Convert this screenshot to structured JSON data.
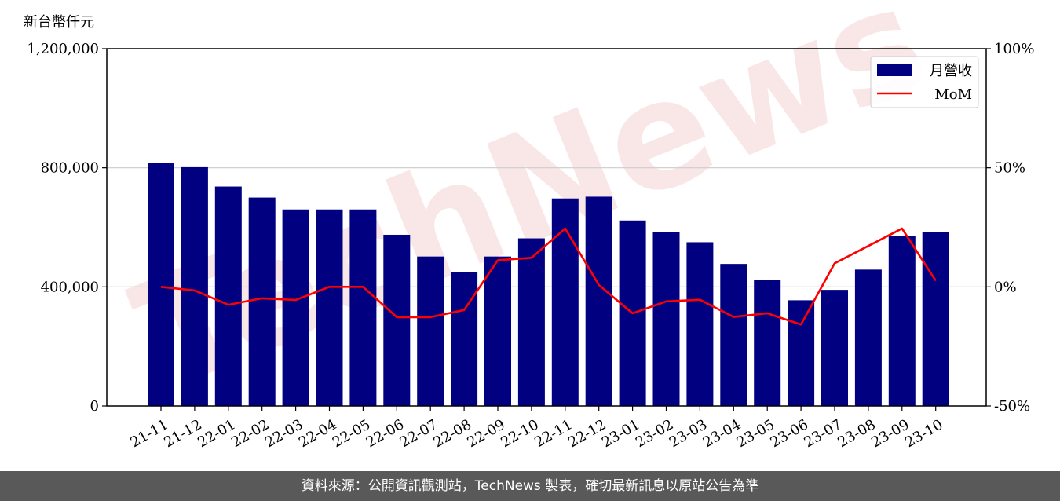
{
  "chart_data": {
    "type": "bar",
    "unit_label": "新台幣仟元",
    "categories": [
      "21-11",
      "21-12",
      "22-01",
      "22-02",
      "22-03",
      "22-04",
      "22-05",
      "22-06",
      "22-07",
      "22-08",
      "22-09",
      "22-10",
      "22-11",
      "22-12",
      "23-01",
      "23-02",
      "23-03",
      "23-04",
      "23-05",
      "23-06",
      "23-07",
      "23-08",
      "23-09",
      "23-10"
    ],
    "series": [
      {
        "name": "月營收",
        "type": "bar",
        "axis": "left",
        "color": "#000080",
        "values": [
          817000,
          802000,
          737000,
          700000,
          660000,
          660000,
          660000,
          575000,
          502000,
          450000,
          502000,
          563000,
          697000,
          703000,
          623000,
          583000,
          550000,
          477000,
          423000,
          355000,
          390000,
          458000,
          570000,
          583000
        ]
      },
      {
        "name": "MoM",
        "type": "line",
        "axis": "right",
        "color": "#ff0000",
        "values": [
          0.0,
          -1.5,
          -7.5,
          -4.8,
          -5.5,
          0.0,
          0.0,
          -12.7,
          -12.7,
          -9.7,
          11.2,
          12.2,
          24.5,
          0.8,
          -11.1,
          -6.1,
          -5.4,
          -12.6,
          -11.1,
          -15.8,
          9.9,
          17.2,
          24.5,
          2.6
        ]
      }
    ],
    "y_left": {
      "ylim": [
        0,
        1200000
      ],
      "ticks": [
        0,
        400000,
        800000,
        1200000
      ],
      "tick_labels": [
        "0",
        "400,000",
        "800,000",
        "1,200,000"
      ]
    },
    "y_right": {
      "ylim": [
        -50,
        100
      ],
      "ticks": [
        -50,
        0,
        50,
        100
      ],
      "tick_labels": [
        "-50%",
        "0%",
        "50%",
        "100%"
      ]
    },
    "grid": "horizontal",
    "legend": {
      "placement": "top-right",
      "entries": [
        "月營收",
        "MoM"
      ]
    }
  },
  "watermark": {
    "text": "TechNews"
  },
  "footer": {
    "source_text": "資料來源：公開資訊觀測站，TechNews 製表，確切最新訊息以原站公告為準"
  }
}
